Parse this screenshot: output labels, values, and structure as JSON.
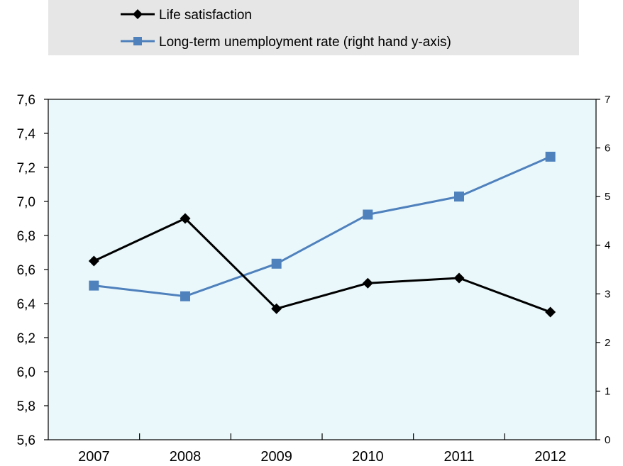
{
  "chart_data": {
    "type": "line",
    "title": "",
    "xlabel": "",
    "ylabel": "",
    "categories": [
      "2007",
      "2008",
      "2009",
      "2010",
      "2011",
      "2012"
    ],
    "y_left": {
      "range": [
        5.6,
        7.6
      ],
      "ticks": [
        "5,6",
        "5,8",
        "6,0",
        "6,2",
        "6,4",
        "6,6",
        "6,8",
        "7,0",
        "7,2",
        "7,4",
        "7,6"
      ]
    },
    "y_right": {
      "range": [
        0,
        7
      ],
      "ticks": [
        "0",
        "1",
        "2",
        "3",
        "4",
        "5",
        "6",
        "7"
      ]
    },
    "grid": false,
    "legend_position": "top",
    "plot_background": "#eaf8fb",
    "series": [
      {
        "name": "Life satisfaction",
        "axis": "left",
        "color": "#000000",
        "marker": "diamond",
        "values": [
          6.65,
          6.9,
          6.37,
          6.52,
          6.55,
          6.35
        ]
      },
      {
        "name": "Long-term unemployment rate (right hand y-axis)",
        "axis": "right",
        "color": "#4f81bd",
        "marker": "square",
        "values": [
          3.17,
          2.95,
          3.62,
          4.63,
          5.0,
          5.82
        ]
      }
    ]
  }
}
